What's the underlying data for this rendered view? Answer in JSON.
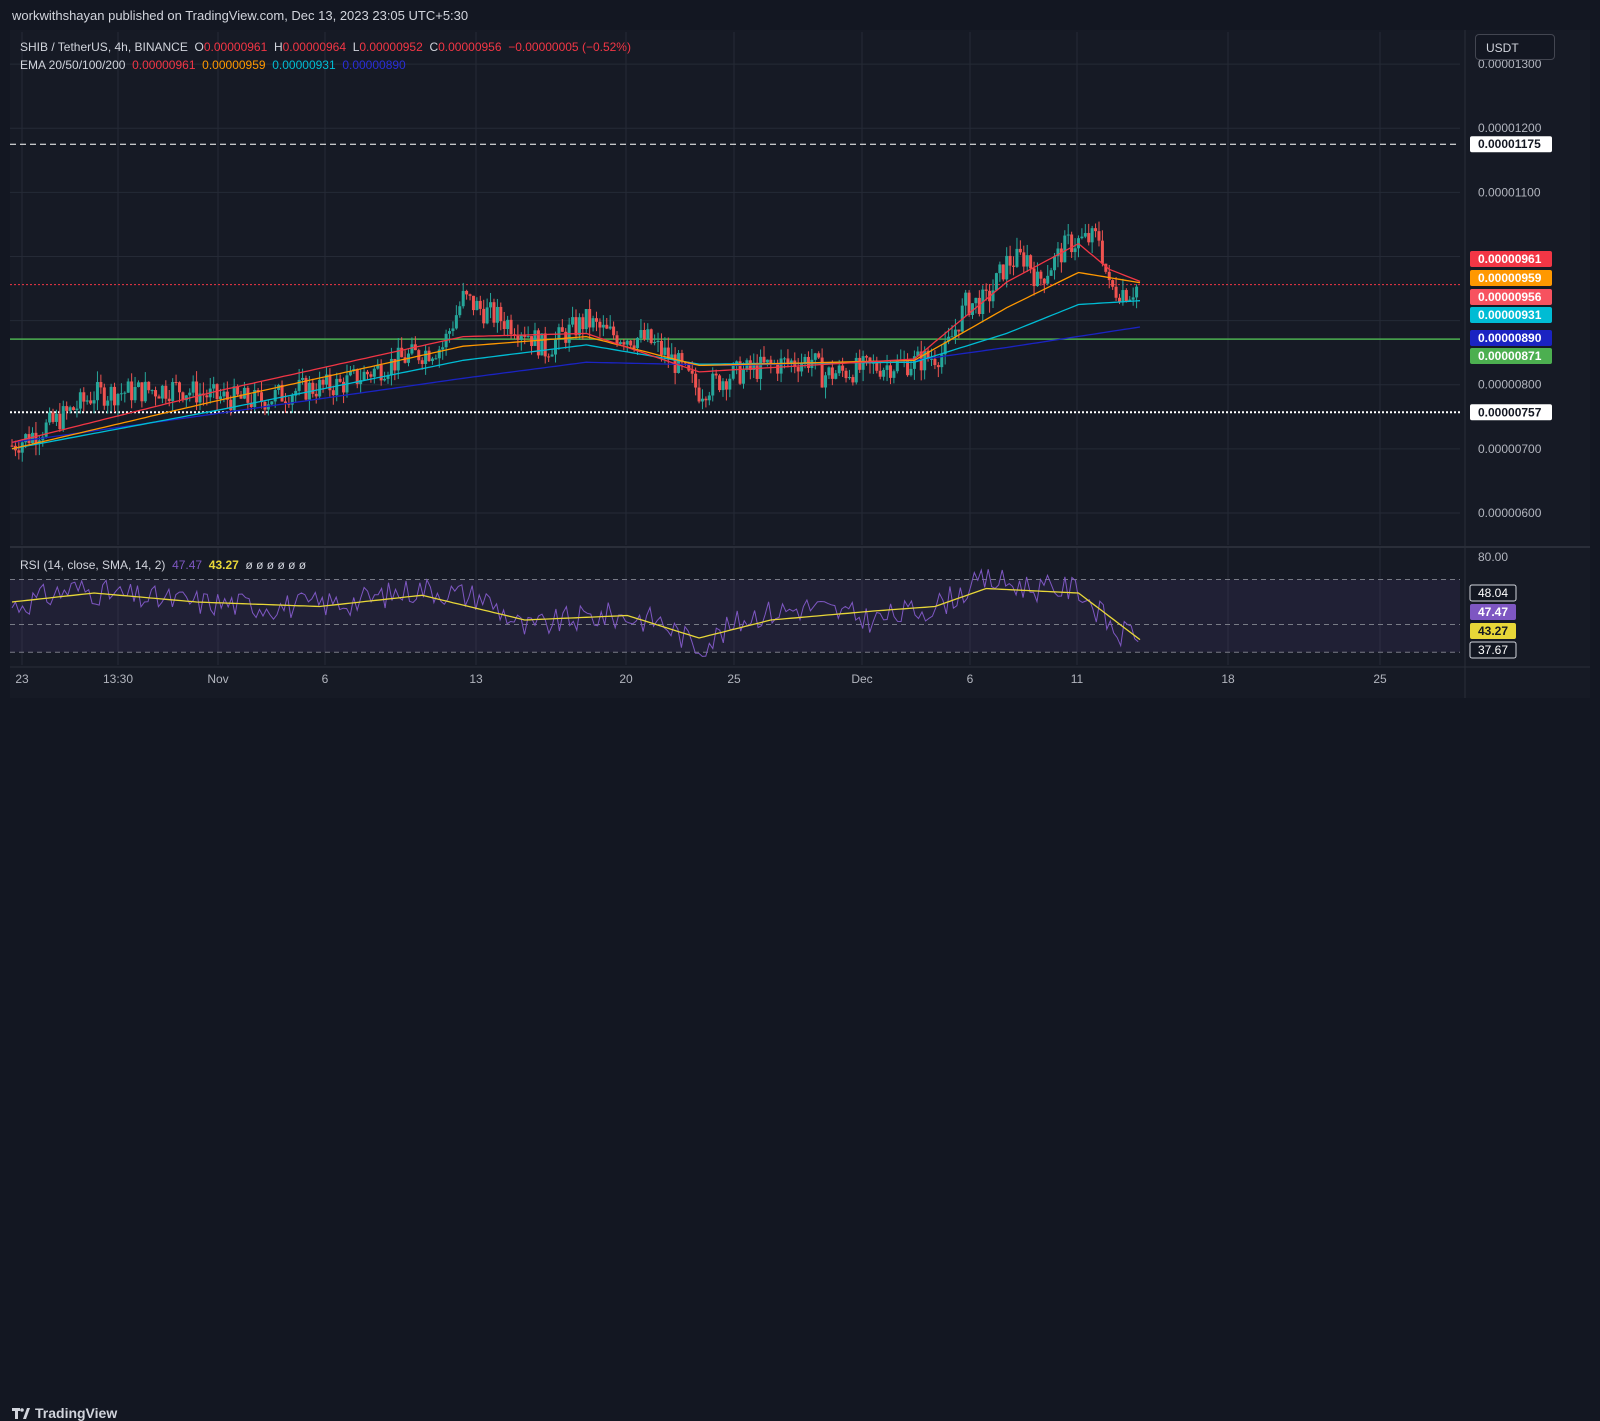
{
  "header": {
    "publisher_line": "workwithshayan published on TradingView.com, Dec 13, 2023 23:05 UTC+5:30"
  },
  "legend": {
    "symbol": "SHIB / TetherUS, 4h, BINANCE",
    "open_label": "O",
    "open": "0.00000961",
    "high_label": "H",
    "high": "0.00000964",
    "low_label": "L",
    "low": "0.00000952",
    "close_label": "C",
    "close": "0.00000956",
    "change": "−0.00000005 (−0.52%)",
    "ema_label": "EMA 20/50/100/200",
    "ema20": "0.00000961",
    "ema50": "0.00000959",
    "ema100": "0.00000931",
    "ema200": "0.00000890",
    "rsi_label": "RSI (14, close, SMA, 14, 2)",
    "rsi_value": "47.47",
    "rsi_sma": "43.27",
    "rsi_extra": "ø ø ø ø ø ø"
  },
  "currency_button": "USDT",
  "footer": {
    "brand": "TradingView"
  },
  "colors": {
    "background": "#161a25",
    "grid": "#252a36",
    "up": "#26a69a",
    "down": "#ef5350",
    "ema20": "#f23645",
    "ema50": "#ff9800",
    "ema100": "#00bcd4",
    "ema200": "#1a23c2",
    "rsi": "#7e57c2",
    "rsi_sma": "#e8d738",
    "green_line": "#4caf50"
  },
  "chart_data": {
    "type": "candlestick",
    "title": "SHIB / TetherUS, 4h, BINANCE",
    "x_tick_labels": [
      "23",
      "13:30",
      "Nov",
      "6",
      "13",
      "20",
      "25",
      "Dec",
      "6",
      "11",
      "18",
      "25"
    ],
    "y_tick_labels": [
      "0.00001300",
      "0.00001200",
      "0.00001100",
      "0.00000800",
      "0.00000700",
      "0.00000600"
    ],
    "ylim": [
      5.5e-06,
      1.35e-05
    ],
    "price_path": [
      [
        0,
        7.05e-06
      ],
      [
        4,
        7.4e-06
      ],
      [
        8,
        7.85e-06
      ],
      [
        12,
        7.9e-06
      ],
      [
        16,
        7.95e-06
      ],
      [
        20,
        7.8e-06
      ],
      [
        24,
        7.75e-06
      ],
      [
        28,
        7.92e-06
      ],
      [
        32,
        8e-06
      ],
      [
        38,
        8.4e-06
      ],
      [
        42,
        8.6e-06
      ],
      [
        44,
        9.35e-06
      ],
      [
        46,
        9.15e-06
      ],
      [
        50,
        8.85e-06
      ],
      [
        52,
        8.55e-06
      ],
      [
        54,
        8.8e-06
      ],
      [
        56,
        9e-06
      ],
      [
        58,
        8.8e-06
      ],
      [
        62,
        8.7e-06
      ],
      [
        65,
        8.3e-06
      ],
      [
        67,
        7.9e-06
      ],
      [
        70,
        8.15e-06
      ],
      [
        74,
        8.3e-06
      ],
      [
        78,
        8.4e-06
      ],
      [
        79,
        8.15e-06
      ],
      [
        83,
        8.25e-06
      ],
      [
        88,
        8.35e-06
      ],
      [
        91,
        8.5e-06
      ],
      [
        93,
        9.25e-06
      ],
      [
        95,
        9.3e-06
      ],
      [
        97,
        9.9e-06
      ],
      [
        99,
        1e-05
      ],
      [
        100,
        9.6e-06
      ],
      [
        103,
        1.02e-05
      ],
      [
        106,
        1.03e-05
      ],
      [
        107,
        9.5e-06
      ],
      [
        109,
        9.45e-06
      ],
      [
        110,
        9.56e-06
      ]
    ],
    "ema20": [
      [
        0,
        7.1e-06
      ],
      [
        20,
        7.9e-06
      ],
      [
        44,
        8.75e-06
      ],
      [
        56,
        8.8e-06
      ],
      [
        67,
        8.2e-06
      ],
      [
        88,
        8.4e-06
      ],
      [
        97,
        9.6e-06
      ],
      [
        104,
        1.02e-05
      ],
      [
        107,
        9.8e-06
      ],
      [
        110,
        9.61e-06
      ]
    ],
    "ema50": [
      [
        0,
        7e-06
      ],
      [
        20,
        7.75e-06
      ],
      [
        44,
        8.6e-06
      ],
      [
        56,
        8.75e-06
      ],
      [
        67,
        8.3e-06
      ],
      [
        88,
        8.38e-06
      ],
      [
        97,
        9.2e-06
      ],
      [
        104,
        9.75e-06
      ],
      [
        110,
        9.59e-06
      ]
    ],
    "ema100": [
      [
        0,
        7e-06
      ],
      [
        20,
        7.6e-06
      ],
      [
        44,
        8.38e-06
      ],
      [
        56,
        8.62e-06
      ],
      [
        67,
        8.32e-06
      ],
      [
        88,
        8.35e-06
      ],
      [
        97,
        8.8e-06
      ],
      [
        104,
        9.25e-06
      ],
      [
        110,
        9.31e-06
      ]
    ],
    "ema200": [
      [
        0,
        7.1e-06
      ],
      [
        20,
        7.55e-06
      ],
      [
        44,
        8.1e-06
      ],
      [
        56,
        8.35e-06
      ],
      [
        70,
        8.3e-06
      ],
      [
        88,
        8.38e-06
      ],
      [
        97,
        8.58e-06
      ],
      [
        110,
        8.9e-06
      ]
    ],
    "horizontal_lines": [
      {
        "label": "0.00001175",
        "value": 1.175e-05,
        "style": "dashed",
        "color": "#ffffff"
      },
      {
        "label": "0.00000871",
        "value": 8.71e-06,
        "style": "solid",
        "color": "#4caf50"
      },
      {
        "label": "0.00000757",
        "value": 7.57e-06,
        "style": "dotted",
        "color": "#ffffff"
      },
      {
        "label": "0.00000956",
        "value": 9.56e-06,
        "style": "dotted",
        "color": "#f23645"
      }
    ],
    "price_labels": [
      {
        "label": "0.00000961",
        "value": 9.61e-06,
        "color": "#f23645"
      },
      {
        "label": "0.00000959",
        "value": 9.59e-06,
        "color": "#ff9800"
      },
      {
        "label": "0.00000956",
        "value": 9.56e-06,
        "color": "#f7525f"
      },
      {
        "label": "0.00000931",
        "value": 9.31e-06,
        "color": "#00bcd4"
      },
      {
        "label": "0.00000890",
        "value": 8.9e-06,
        "color": "#1a23c2"
      },
      {
        "label": "0.00000871",
        "value": 8.71e-06,
        "color": "#4caf50"
      }
    ],
    "rsi": {
      "ylim": [
        32,
        84
      ],
      "band": [
        37.67,
        70
      ],
      "tick_labels": [
        "80.00",
        "48.04",
        "37.67"
      ],
      "price_labels": [
        {
          "label": "48.04",
          "value": 48.04,
          "color": "#ffffff"
        },
        {
          "label": "47.47",
          "value": 47.47,
          "color": "#7e57c2"
        },
        {
          "label": "43.27",
          "value": 43.27,
          "color": "#e8d738"
        },
        {
          "label": "37.67",
          "value": 37.67,
          "color": "#ffffff"
        }
      ],
      "path": [
        [
          0,
          58
        ],
        [
          6,
          66
        ],
        [
          12,
          62
        ],
        [
          18,
          60
        ],
        [
          26,
          58
        ],
        [
          33,
          60
        ],
        [
          40,
          66
        ],
        [
          46,
          62
        ],
        [
          50,
          48
        ],
        [
          54,
          52
        ],
        [
          58,
          54
        ],
        [
          63,
          52
        ],
        [
          67,
          40
        ],
        [
          72,
          54
        ],
        [
          78,
          58
        ],
        [
          84,
          52
        ],
        [
          90,
          58
        ],
        [
          95,
          70
        ],
        [
          100,
          66
        ],
        [
          104,
          66
        ],
        [
          108,
          45
        ],
        [
          110,
          47.47
        ]
      ],
      "sma": [
        [
          0,
          60
        ],
        [
          8,
          64
        ],
        [
          18,
          60
        ],
        [
          30,
          58
        ],
        [
          40,
          63
        ],
        [
          50,
          52
        ],
        [
          60,
          54
        ],
        [
          67,
          44
        ],
        [
          74,
          52
        ],
        [
          84,
          56
        ],
        [
          90,
          58
        ],
        [
          95,
          66
        ],
        [
          104,
          64
        ],
        [
          110,
          43.27
        ]
      ]
    }
  }
}
